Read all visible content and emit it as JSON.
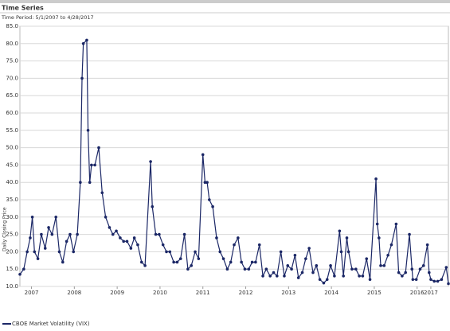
{
  "header": {
    "title": "Time Series",
    "period": "Time Period: 5/1/2007 to 4/28/2017"
  },
  "chart_data": {
    "type": "line",
    "y_label": "Daily Closing Price",
    "grid": true,
    "markers": true,
    "xlim": [
      2007.33,
      2017.33
    ],
    "xticks": [
      {
        "value": 2007.6,
        "label": "2007"
      },
      {
        "value": 2008.6,
        "label": "2008"
      },
      {
        "value": 2009.6,
        "label": "2009"
      },
      {
        "value": 2010.6,
        "label": "2010"
      },
      {
        "value": 2011.6,
        "label": "2011"
      },
      {
        "value": 2012.6,
        "label": "2012"
      },
      {
        "value": 2013.6,
        "label": "2013"
      },
      {
        "value": 2014.6,
        "label": "2014"
      },
      {
        "value": 2015.6,
        "label": "2015"
      },
      {
        "value": 2016.6,
        "label": "2016"
      },
      {
        "value": 2016.92,
        "label": "2017"
      }
    ],
    "ylim": [
      10,
      85
    ],
    "yticks": [
      {
        "value": 10,
        "label": "10.0"
      },
      {
        "value": 15,
        "label": "15.0"
      },
      {
        "value": 20,
        "label": "20.0"
      },
      {
        "value": 25,
        "label": "25.0"
      },
      {
        "value": 30,
        "label": "30.0"
      },
      {
        "value": 35,
        "label": "35.0"
      },
      {
        "value": 40,
        "label": "40.0"
      },
      {
        "value": 45,
        "label": "45.0"
      },
      {
        "value": 50,
        "label": "50.0"
      },
      {
        "value": 55,
        "label": "55.0"
      },
      {
        "value": 60,
        "label": "60.0"
      },
      {
        "value": 65,
        "label": "65.0"
      },
      {
        "value": 70,
        "label": "70.0"
      },
      {
        "value": 75,
        "label": "75.0"
      },
      {
        "value": 80,
        "label": "80.0"
      },
      {
        "value": 85,
        "label": "85.0"
      }
    ],
    "x": [
      2007.33,
      2007.42,
      2007.5,
      2007.57,
      2007.62,
      2007.67,
      2007.75,
      2007.83,
      2007.92,
      2008.0,
      2008.08,
      2008.17,
      2008.25,
      2008.33,
      2008.42,
      2008.5,
      2008.58,
      2008.67,
      2008.74,
      2008.78,
      2008.81,
      2008.89,
      2008.92,
      2008.96,
      2009.0,
      2009.08,
      2009.17,
      2009.25,
      2009.33,
      2009.42,
      2009.5,
      2009.58,
      2009.67,
      2009.75,
      2009.83,
      2009.92,
      2010.0,
      2010.08,
      2010.17,
      2010.25,
      2010.38,
      2010.42,
      2010.5,
      2010.58,
      2010.67,
      2010.75,
      2010.83,
      2010.92,
      2011.0,
      2011.08,
      2011.17,
      2011.25,
      2011.33,
      2011.42,
      2011.5,
      2011.6,
      2011.65,
      2011.7,
      2011.75,
      2011.83,
      2011.92,
      2012.0,
      2012.08,
      2012.17,
      2012.25,
      2012.33,
      2012.42,
      2012.5,
      2012.58,
      2012.67,
      2012.75,
      2012.83,
      2012.92,
      2013.0,
      2013.08,
      2013.17,
      2013.25,
      2013.33,
      2013.42,
      2013.5,
      2013.58,
      2013.67,
      2013.75,
      2013.83,
      2013.92,
      2014.0,
      2014.08,
      2014.17,
      2014.25,
      2014.33,
      2014.42,
      2014.5,
      2014.58,
      2014.67,
      2014.79,
      2014.83,
      2014.88,
      2014.96,
      2015.0,
      2015.08,
      2015.17,
      2015.25,
      2015.33,
      2015.42,
      2015.5,
      2015.64,
      2015.67,
      2015.71,
      2015.75,
      2015.83,
      2015.92,
      2016.0,
      2016.11,
      2016.17,
      2016.25,
      2016.33,
      2016.42,
      2016.48,
      2016.5,
      2016.58,
      2016.67,
      2016.75,
      2016.84,
      2016.88,
      2016.92,
      2017.0,
      2017.08,
      2017.17,
      2017.28,
      2017.33
    ],
    "series": [
      {
        "name": "CBOE Market Volatility (VIX)",
        "color": "#1b2766",
        "values": [
          13.5,
          15,
          20,
          24,
          30,
          20,
          18,
          25,
          21,
          27,
          25,
          30,
          20,
          17,
          23,
          25,
          20,
          25,
          40,
          70,
          80,
          81,
          55,
          40,
          45,
          45,
          50,
          37,
          30,
          27,
          25,
          26,
          24,
          23,
          23,
          21,
          24,
          22,
          17,
          16,
          46,
          33,
          25,
          25,
          22,
          20,
          20,
          17,
          17,
          18,
          25,
          15,
          16,
          20,
          18,
          48,
          40,
          40,
          35,
          33,
          24,
          20,
          18,
          15,
          17,
          22,
          24,
          17,
          15,
          15,
          17,
          17,
          22,
          13,
          15,
          13,
          14,
          13,
          20,
          13,
          16,
          15,
          19,
          12.5,
          14,
          18,
          21,
          14,
          16,
          12,
          11,
          12,
          16,
          13,
          26,
          20,
          13,
          24,
          20,
          15,
          15,
          13,
          13,
          18,
          12,
          41,
          28,
          24,
          16,
          16,
          19,
          22,
          28,
          14,
          13,
          14,
          25,
          15,
          12,
          12,
          15,
          16,
          22,
          14,
          12,
          11.5,
          11.5,
          12,
          15.5,
          10.8
        ]
      }
    ]
  }
}
